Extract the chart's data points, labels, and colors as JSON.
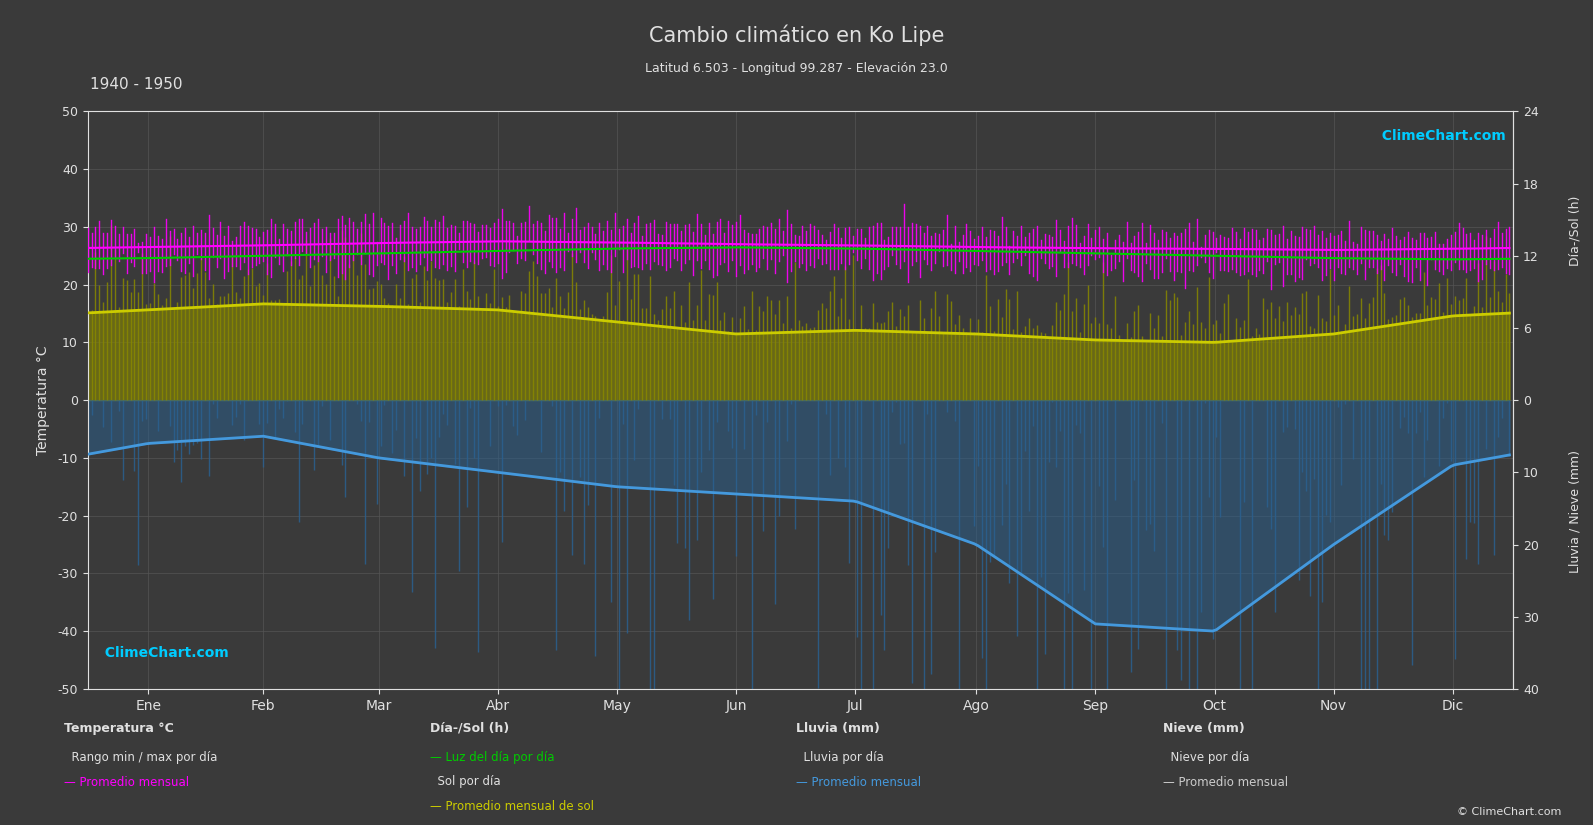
{
  "title": "Cambio climático en Ko Lipe",
  "subtitle": "Latitud 6.503 - Longitud 99.287 - Elevación 23.0",
  "year_range": "1940 - 1950",
  "bg_color": "#3a3a3a",
  "plot_bg_color": "#3a3a3a",
  "grid_color": "#555555",
  "text_color": "#e0e0e0",
  "months_es": [
    "Ene",
    "Feb",
    "Mar",
    "Abr",
    "May",
    "Jun",
    "Jul",
    "Ago",
    "Sep",
    "Oct",
    "Nov",
    "Dic"
  ],
  "temp_ylim": [
    -50,
    50
  ],
  "temp_avg_monthly": [
    26.5,
    26.8,
    27.2,
    27.5,
    27.3,
    27.0,
    26.8,
    26.5,
    26.3,
    26.2,
    26.0,
    26.2
  ],
  "temp_max_monthly": [
    29.5,
    30.0,
    30.5,
    30.8,
    30.5,
    29.8,
    29.5,
    29.2,
    29.0,
    28.8,
    28.5,
    28.8
  ],
  "temp_min_monthly": [
    23.0,
    23.2,
    23.5,
    24.0,
    23.8,
    23.5,
    23.2,
    23.0,
    22.8,
    22.5,
    22.2,
    22.5
  ],
  "daylight_monthly": [
    11.8,
    12.0,
    12.2,
    12.4,
    12.6,
    12.7,
    12.6,
    12.4,
    12.2,
    12.0,
    11.8,
    11.7
  ],
  "sun_monthly": [
    7.5,
    8.0,
    7.8,
    7.5,
    6.5,
    5.5,
    5.8,
    5.5,
    5.0,
    4.8,
    5.5,
    7.0
  ],
  "rain_monthly_avg_mm": [
    6.0,
    5.0,
    8.0,
    10.0,
    12.0,
    13.0,
    14.0,
    20.0,
    31.0,
    32.0,
    20.0,
    9.0
  ],
  "rain_color": "#2a6090",
  "rain_bar_color": "#2a5f9e",
  "magenta_color": "#ff00ff",
  "green_line_color": "#00cc00",
  "yellow_fill_color": "#888800",
  "yellow_line_color": "#cccc00",
  "blue_curve_color": "#4499dd",
  "sun_right_ticks": [
    0,
    6,
    12,
    18,
    24
  ],
  "rain_right_ticks": [
    0,
    10,
    20,
    30,
    40
  ],
  "temp_left_ticks": [
    -50,
    -40,
    -30,
    -20,
    -10,
    0,
    10,
    20,
    30,
    40,
    50
  ]
}
